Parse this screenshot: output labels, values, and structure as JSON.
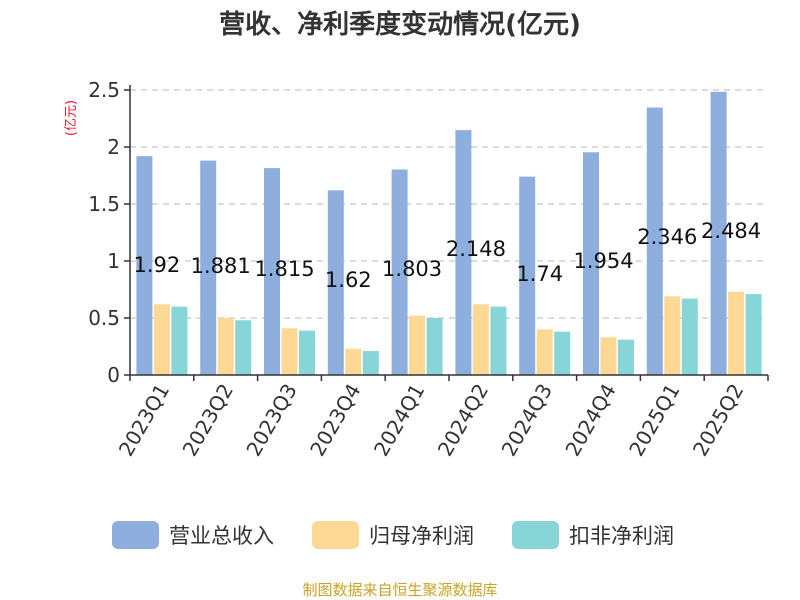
{
  "chart_data": {
    "type": "bar",
    "title": "营收、净利季度变动情况(亿元)",
    "unit_label": "(亿元)",
    "ylim": [
      0,
      2.5
    ],
    "yticks": [
      "0",
      "0.5",
      "1",
      "1.5",
      "2",
      "2.5"
    ],
    "grid": true,
    "legend_position": "bottom",
    "categories": [
      "2023Q1",
      "2023Q2",
      "2023Q3",
      "2023Q4",
      "2024Q1",
      "2024Q2",
      "2024Q3",
      "2024Q4",
      "2025Q1",
      "2025Q2"
    ],
    "series": [
      {
        "name": "营业总收入",
        "color": "#8eaedd",
        "values": [
          1.92,
          1.881,
          1.815,
          1.62,
          1.803,
          2.148,
          1.74,
          1.954,
          2.346,
          2.484
        ]
      },
      {
        "name": "归母净利润",
        "color": "#fdd794",
        "values": [
          0.62,
          0.5,
          0.41,
          0.23,
          0.52,
          0.62,
          0.4,
          0.33,
          0.69,
          0.73
        ]
      },
      {
        "name": "扣非净利润",
        "color": "#88d5d8",
        "values": [
          0.6,
          0.48,
          0.39,
          0.21,
          0.5,
          0.6,
          0.38,
          0.31,
          0.67,
          0.71
        ]
      }
    ],
    "data_labels": [
      "1.92",
      "1.881",
      "1.815",
      "1.62",
      "1.803",
      "2.148",
      "1.74",
      "1.954",
      "2.346",
      "2.484"
    ],
    "source": "制图数据来自恒生聚源数据库"
  }
}
